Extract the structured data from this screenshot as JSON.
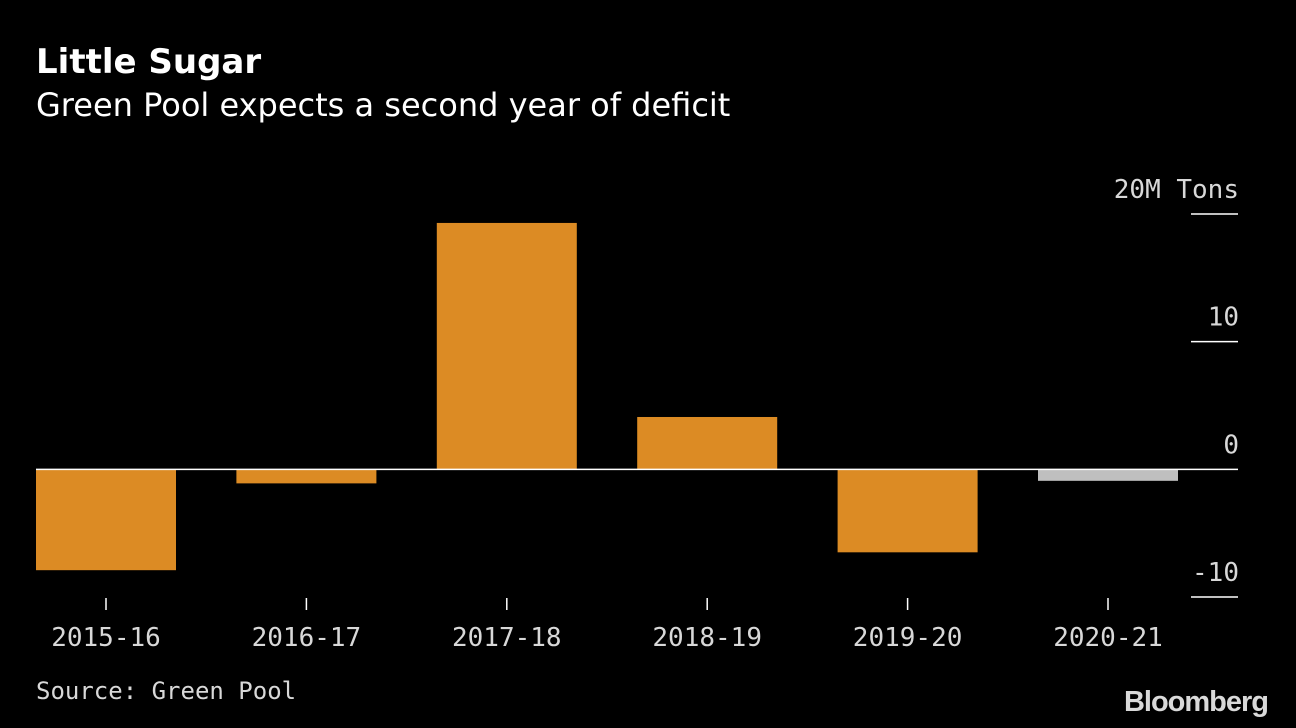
{
  "header": {
    "title": "Little Sugar",
    "subtitle": "Green Pool expects a second year of deficit"
  },
  "footer": {
    "source": "Source: Green Pool",
    "brand": "Bloomberg"
  },
  "chart_data": {
    "type": "bar",
    "title": "Little Sugar",
    "subtitle": "Green Pool expects a second year of deficit",
    "categories": [
      "2015-16",
      "2016-17",
      "2017-18",
      "2018-19",
      "2019-20",
      "2020-21"
    ],
    "values": [
      -7.9,
      -1.1,
      19.3,
      4.1,
      -6.5,
      -0.9
    ],
    "forecast": [
      false,
      false,
      false,
      false,
      false,
      true
    ],
    "ylabel": "",
    "y_unit_label": "20M Tons",
    "ylim": [
      -10,
      20
    ],
    "yticks": [
      20,
      10,
      0,
      -10
    ],
    "ytick_labels": [
      "20M Tons",
      "10",
      "0",
      "-10"
    ],
    "legend": "none",
    "grid": false,
    "colors": {
      "actual": "#dc8b24",
      "forecast": "#bfbfbf",
      "zero_line": "#ffffff",
      "axis_text": "#d8d8d8",
      "background": "#000000"
    }
  }
}
